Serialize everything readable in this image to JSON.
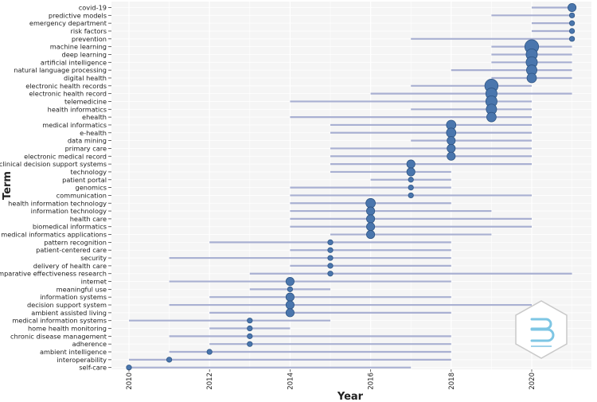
{
  "chart_data": {
    "type": "scatter",
    "title": "",
    "xlabel": "Year",
    "ylabel": "Term",
    "xlim": [
      2010,
      2021
    ],
    "x_ticks": [
      2010,
      2012,
      2014,
      2016,
      2018,
      2020
    ],
    "grid": true,
    "legend": "none",
    "colors": {
      "bar": "#a9b0d2",
      "point": "#4a76ad",
      "point_stroke": "#2e5585",
      "panel": "#f5f5f5",
      "grid": "#ffffff"
    },
    "terms": [
      {
        "term": "covid-19",
        "start": 2020,
        "end": 2021,
        "peak": 2021,
        "freq": 3
      },
      {
        "term": "predictive models",
        "start": 2019,
        "end": 2021,
        "peak": 2021,
        "freq": 2
      },
      {
        "term": "emergency department",
        "start": 2020,
        "end": 2021,
        "peak": 2021,
        "freq": 2
      },
      {
        "term": "risk factors",
        "start": 2020,
        "end": 2021,
        "peak": 2021,
        "freq": 2
      },
      {
        "term": "prevention",
        "start": 2017,
        "end": 2021,
        "peak": 2021,
        "freq": 2
      },
      {
        "term": "machine learning",
        "start": 2019,
        "end": 2021,
        "peak": 2020,
        "freq": 10
      },
      {
        "term": "deep learning",
        "start": 2019,
        "end": 2021,
        "peak": 2020,
        "freq": 6
      },
      {
        "term": "artificial intelligence",
        "start": 2019,
        "end": 2021,
        "peak": 2020,
        "freq": 6
      },
      {
        "term": "natural language processing",
        "start": 2018,
        "end": 2021,
        "peak": 2020,
        "freq": 5
      },
      {
        "term": "digital health",
        "start": 2019,
        "end": 2021,
        "peak": 2020,
        "freq": 4
      },
      {
        "term": "electronic health records",
        "start": 2017,
        "end": 2020,
        "peak": 2019,
        "freq": 9
      },
      {
        "term": "electronic health record",
        "start": 2016,
        "end": 2021,
        "peak": 2019,
        "freq": 6
      },
      {
        "term": "telemedicine",
        "start": 2014,
        "end": 2020,
        "peak": 2019,
        "freq": 6
      },
      {
        "term": "health informatics",
        "start": 2017,
        "end": 2020,
        "peak": 2019,
        "freq": 5
      },
      {
        "term": "ehealth",
        "start": 2014,
        "end": 2020,
        "peak": 2019,
        "freq": 4
      },
      {
        "term": "medical informatics",
        "start": 2015,
        "end": 2020,
        "peak": 2018,
        "freq": 4
      },
      {
        "term": "e-health",
        "start": 2015,
        "end": 2020,
        "peak": 2018,
        "freq": 4
      },
      {
        "term": "data mining",
        "start": 2017,
        "end": 2020,
        "peak": 2018,
        "freq": 3
      },
      {
        "term": "primary care",
        "start": 2015,
        "end": 2020,
        "peak": 2018,
        "freq": 3
      },
      {
        "term": "electronic medical record",
        "start": 2015,
        "end": 2020,
        "peak": 2018,
        "freq": 3
      },
      {
        "term": "clinical decision support systems",
        "start": 2015,
        "end": 2020,
        "peak": 2017,
        "freq": 3
      },
      {
        "term": "technology",
        "start": 2015,
        "end": 2018,
        "peak": 2017,
        "freq": 3
      },
      {
        "term": "patient portal",
        "start": 2016,
        "end": 2018,
        "peak": 2017,
        "freq": 2
      },
      {
        "term": "genomics",
        "start": 2014,
        "end": 2018,
        "peak": 2017,
        "freq": 2
      },
      {
        "term": "communication",
        "start": 2014,
        "end": 2020,
        "peak": 2017,
        "freq": 2
      },
      {
        "term": "health information technology",
        "start": 2014,
        "end": 2018,
        "peak": 2016,
        "freq": 4
      },
      {
        "term": "information technology",
        "start": 2014,
        "end": 2019,
        "peak": 2016,
        "freq": 3
      },
      {
        "term": "health care",
        "start": 2014,
        "end": 2020,
        "peak": 2016,
        "freq": 3
      },
      {
        "term": "biomedical informatics",
        "start": 2014,
        "end": 2020,
        "peak": 2016,
        "freq": 3
      },
      {
        "term": "medical informatics applications",
        "start": 2015,
        "end": 2019,
        "peak": 2016,
        "freq": 3
      },
      {
        "term": "pattern recognition",
        "start": 2012,
        "end": 2018,
        "peak": 2015,
        "freq": 2
      },
      {
        "term": "patient-centered care",
        "start": 2014,
        "end": 2018,
        "peak": 2015,
        "freq": 2
      },
      {
        "term": "security",
        "start": 2011,
        "end": 2018,
        "peak": 2015,
        "freq": 2
      },
      {
        "term": "delivery of health care",
        "start": 2014,
        "end": 2018,
        "peak": 2015,
        "freq": 2
      },
      {
        "term": "comparative effectiveness research",
        "start": 2013,
        "end": 2021,
        "peak": 2015,
        "freq": 2
      },
      {
        "term": "internet",
        "start": 2011,
        "end": 2018,
        "peak": 2014,
        "freq": 3
      },
      {
        "term": "meaningful use",
        "start": 2013,
        "end": 2015,
        "peak": 2014,
        "freq": 2
      },
      {
        "term": "information systems",
        "start": 2012,
        "end": 2018,
        "peak": 2014,
        "freq": 3
      },
      {
        "term": "decision support system",
        "start": 2011,
        "end": 2020,
        "peak": 2014,
        "freq": 3
      },
      {
        "term": "ambient assisted living",
        "start": 2012,
        "end": 2018,
        "peak": 2014,
        "freq": 3
      },
      {
        "term": "medical information systems",
        "start": 2010,
        "end": 2015,
        "peak": 2013,
        "freq": 2
      },
      {
        "term": "home health monitoring",
        "start": 2012,
        "end": 2014,
        "peak": 2013,
        "freq": 2
      },
      {
        "term": "chronic disease management",
        "start": 2011,
        "end": 2018,
        "peak": 2013,
        "freq": 2
      },
      {
        "term": "adherence",
        "start": 2012,
        "end": 2018,
        "peak": 2013,
        "freq": 2
      },
      {
        "term": "ambient intelligence",
        "start": 2011,
        "end": 2018,
        "peak": 2012,
        "freq": 2
      },
      {
        "term": "interoperability",
        "start": 2010,
        "end": 2018,
        "peak": 2011,
        "freq": 2
      },
      {
        "term": "self-care",
        "start": 2010,
        "end": 2017,
        "peak": 2010,
        "freq": 2
      }
    ]
  }
}
